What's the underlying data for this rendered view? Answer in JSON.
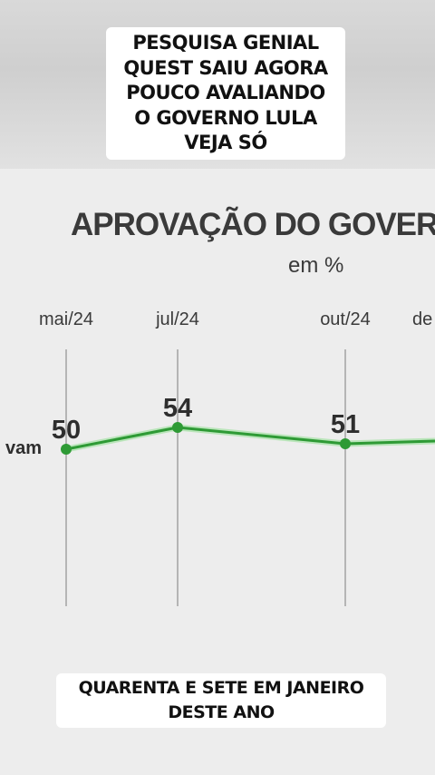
{
  "caption_top": {
    "lines": [
      "PESQUISA GENIAL",
      "QUEST SAIU AGORA",
      "POUCO AVALIANDO",
      "O GOVERNO LULA",
      "VEJA SÓ"
    ]
  },
  "caption_bottom": {
    "lines": [
      "QUARENTA E SETE EM JANEIRO",
      "DESTE ANO"
    ]
  },
  "colors": {
    "line": "#5bd85b",
    "point": "#2e9a35",
    "gridline": "#b5b5b5"
  },
  "chart_data": {
    "type": "line",
    "title": "APROVAÇÃO DO GOVER",
    "subtitle": "em %",
    "categories": [
      "mai/24",
      "jul/24",
      "out/24",
      "de"
    ],
    "series": [
      {
        "name": "vam",
        "values": [
          50,
          54,
          51,
          null
        ],
        "labels": [
          "50",
          "54",
          "51",
          ""
        ]
      }
    ],
    "grid": true,
    "legend": "none"
  }
}
